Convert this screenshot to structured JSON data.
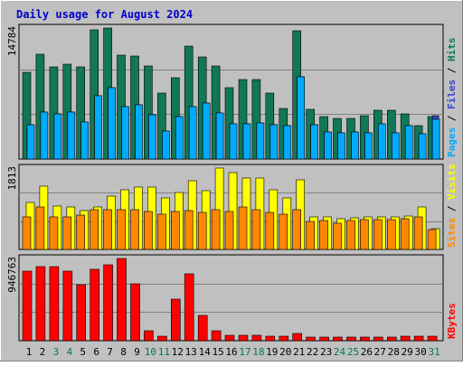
{
  "chart_data": [
    {
      "type": "bar",
      "title": "Daily usage for August 2024",
      "x": [
        "1",
        "2",
        "3",
        "4",
        "5",
        "6",
        "7",
        "8",
        "9",
        "10",
        "11",
        "12",
        "13",
        "14",
        "15",
        "16",
        "17",
        "18",
        "19",
        "20",
        "21",
        "22",
        "23",
        "24",
        "25",
        "26",
        "27",
        "28",
        "29",
        "30",
        "31"
      ],
      "weekend_days": [
        "3",
        "4",
        "10",
        "11",
        "17",
        "18",
        "24",
        "25",
        "31"
      ],
      "ymax_label": "14784",
      "legend": [
        {
          "text": "Pages",
          "color": "#00aaff"
        },
        {
          "text": "Files",
          "color": "#3344cc"
        },
        {
          "text": "Hits",
          "color": "#117755"
        }
      ],
      "series": [
        {
          "name": "Hits",
          "color": "#117755",
          "values": [
            8600,
            10400,
            9100,
            9400,
            9100,
            12800,
            13000,
            10300,
            10200,
            9200,
            6500,
            8100,
            11200,
            10100,
            9200,
            7100,
            7900,
            7900,
            6500,
            5000,
            12700,
            4900,
            4200,
            4000,
            4000,
            4300,
            4800,
            4800,
            4500,
            3300,
            4200
          ]
        },
        {
          "name": "Files",
          "color": "#3344cc",
          "values": [
            3400,
            4700,
            4500,
            4700,
            3700,
            6300,
            7100,
            5200,
            5400,
            4400,
            2800,
            4200,
            5200,
            5600,
            4600,
            3500,
            3500,
            3600,
            3400,
            3300,
            8200,
            3400,
            2700,
            2600,
            2700,
            2600,
            3500,
            2600,
            3300,
            2500,
            4300
          ]
        },
        {
          "name": "Pages",
          "color": "#00aaff",
          "values": [
            3400,
            4700,
            4500,
            4700,
            3700,
            6300,
            7100,
            5200,
            5400,
            4400,
            2800,
            4200,
            5200,
            5600,
            4600,
            3500,
            3500,
            3600,
            3400,
            3300,
            8200,
            3400,
            2700,
            2600,
            2700,
            2600,
            3500,
            2600,
            3300,
            2500,
            3900
          ]
        }
      ]
    },
    {
      "type": "bar",
      "ymax_label": "1813",
      "legend": [
        {
          "text": "Sites",
          "color": "#ff8800"
        },
        {
          "text": "Visits",
          "color": "#ffff00"
        }
      ],
      "series": [
        {
          "name": "Visits",
          "color": "#ffff00",
          "values": [
            1000,
            1350,
            930,
            910,
            830,
            910,
            1150,
            1270,
            1330,
            1330,
            1110,
            1220,
            1470,
            1250,
            1740,
            1640,
            1520,
            1530,
            1270,
            1110,
            1480,
            690,
            690,
            650,
            670,
            700,
            690,
            690,
            710,
            900,
            450
          ]
        },
        {
          "name": "Sites",
          "color": "#ff8800",
          "values": [
            700,
            900,
            690,
            700,
            730,
            860,
            850,
            860,
            860,
            810,
            760,
            810,
            830,
            800,
            860,
            810,
            910,
            860,
            800,
            760,
            860,
            600,
            610,
            570,
            610,
            630,
            640,
            640,
            650,
            690,
            430
          ]
        }
      ]
    },
    {
      "type": "bar",
      "ymax_label": "946763",
      "legend": [
        {
          "text": "KBytes",
          "color": "#ff0000"
        }
      ],
      "series": [
        {
          "name": "KBytes",
          "color": "#ff0000",
          "values": [
            780000,
            825000,
            825000,
            780000,
            630000,
            800000,
            850000,
            920000,
            635000,
            115000,
            55000,
            460000,
            750000,
            280000,
            110000,
            62000,
            60000,
            62000,
            55000,
            55000,
            80000,
            40000,
            40000,
            40000,
            40000,
            40000,
            42000,
            42000,
            55000,
            55000,
            55000
          ]
        }
      ]
    }
  ]
}
